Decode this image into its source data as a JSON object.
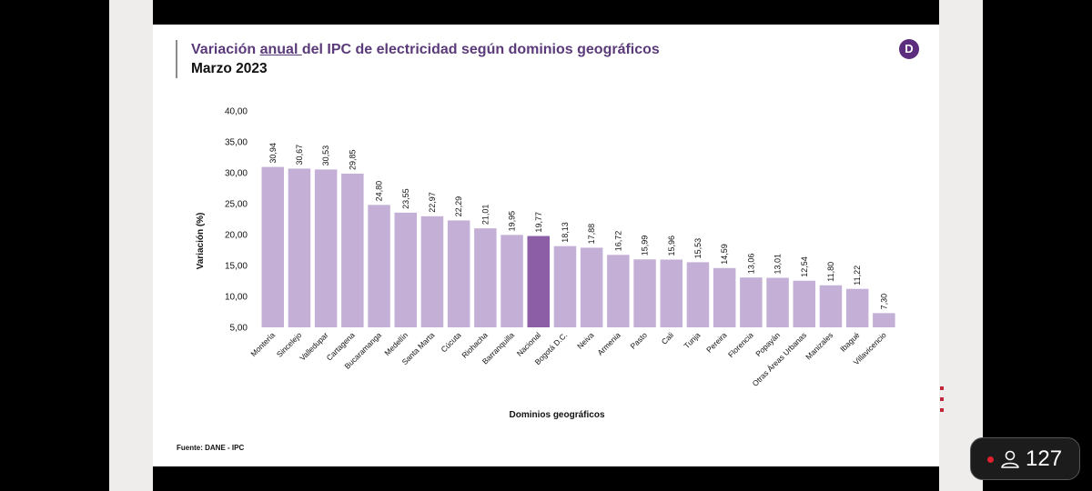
{
  "slide": {
    "title_before": "Variación ",
    "title_underlined": "anual ",
    "title_after": "del IPC de electricidad según dominios geográficos",
    "subtitle": "Marzo 2023",
    "logo_letter": "D",
    "source": "Fuente: DANE - IPC"
  },
  "chart_data": {
    "type": "bar",
    "ylabel": "Variación (%)",
    "xlabel": "Dominios geográficos",
    "ylim": [
      5,
      40
    ],
    "yticks": [
      "5,00",
      "10,00",
      "15,00",
      "20,00",
      "25,00",
      "30,00",
      "35,00",
      "40,00"
    ],
    "categories": [
      "Montería",
      "Sincelejo",
      "Valledupar",
      "Cartagena",
      "Bucaramanga",
      "Medellín",
      "Santa Marta",
      "Cúcuta",
      "Riohacha",
      "Barranquilla",
      "Nacional",
      "Bogotá D.C.",
      "Neiva",
      "Armenia",
      "Pasto",
      "Cali",
      "Tunja",
      "Pereira",
      "Florencia",
      "Popayán",
      "Otras Áreas Urbanas",
      "Manizales",
      "Ibagué",
      "Villavicencio"
    ],
    "values": [
      30.94,
      30.67,
      30.53,
      29.85,
      24.8,
      23.55,
      22.97,
      22.29,
      21.01,
      19.95,
      19.77,
      18.13,
      17.88,
      16.72,
      15.99,
      15.96,
      15.53,
      14.59,
      13.06,
      13.01,
      12.54,
      11.8,
      11.22,
      7.3
    ],
    "labels": [
      "30,94",
      "30,67",
      "30,53",
      "29,85",
      "24,80",
      "23,55",
      "22,97",
      "22,29",
      "21,01",
      "19,95",
      "19,77",
      "18,13",
      "17,88",
      "16,72",
      "15,99",
      "15,96",
      "15,53",
      "14,59",
      "13,06",
      "13,01",
      "12,54",
      "11,80",
      "11,22",
      "7,30"
    ],
    "highlight": "Nacional",
    "colors": {
      "bar": "#c4b0d6",
      "highlight": "#8b5ea6"
    }
  },
  "overlay": {
    "viewer_count": "127",
    "live_color": "#e0202f"
  }
}
